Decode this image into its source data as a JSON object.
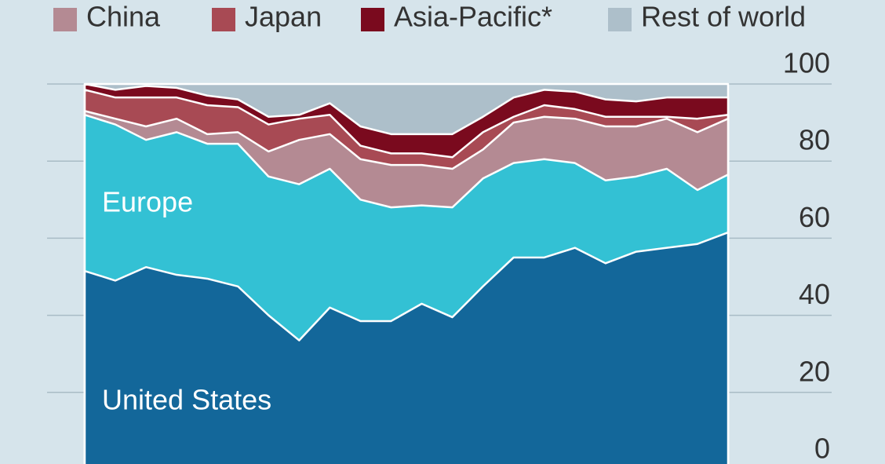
{
  "chart_data": {
    "type": "stacked-area",
    "categories": [
      null,
      null,
      null,
      null,
      null,
      null,
      null,
      null,
      null,
      null,
      null,
      null,
      null,
      null,
      null,
      null,
      null,
      null,
      null,
      null,
      null,
      null
    ],
    "series": [
      {
        "name": "United States",
        "color": "#13679a",
        "values": [
          51.5,
          49,
          52.5,
          50.5,
          49.5,
          47.5,
          40,
          33.5,
          42,
          38.5,
          38.5,
          43,
          39.5,
          47.5,
          55,
          55,
          57.5,
          53.5,
          56.5,
          57.5,
          58.5,
          61.5
        ]
      },
      {
        "name": "Europe",
        "color": "#33c1d4",
        "values": [
          40.5,
          40.5,
          33,
          37,
          35,
          37,
          36,
          40.5,
          36,
          31.5,
          29.5,
          25.5,
          28.5,
          28,
          24.5,
          25.5,
          22,
          21.5,
          19.5,
          20.5,
          14,
          15
        ]
      },
      {
        "name": "China",
        "color": "#b48a93",
        "values": [
          1,
          1.5,
          3.5,
          3.5,
          2.5,
          3,
          6.5,
          11.5,
          9,
          10.5,
          11,
          10.5,
          10,
          7.5,
          10.5,
          11,
          11.5,
          14,
          13,
          13,
          15,
          14.5
        ]
      },
      {
        "name": "Japan",
        "color": "#a84a54",
        "values": [
          5.5,
          5.5,
          7.5,
          5.5,
          7.5,
          6.5,
          7,
          5.5,
          5,
          3.5,
          3,
          3,
          3,
          4.5,
          1.5,
          3,
          2.5,
          2.5,
          2.5,
          0.5,
          3.5,
          1
        ]
      },
      {
        "name": "Asia-Pacific*",
        "color": "#7a0a1e",
        "values": [
          1.5,
          2,
          3,
          2.5,
          2.5,
          2,
          2,
          1,
          3,
          5,
          5,
          5,
          6,
          4,
          5,
          4,
          4.5,
          4.5,
          4,
          5,
          5.5,
          4.5
        ]
      },
      {
        "name": "Rest of world",
        "color": "#adbfca",
        "values": [
          0,
          1.5,
          0.5,
          1,
          3,
          4,
          8.5,
          8,
          5,
          11,
          13,
          13,
          13,
          8.5,
          3.5,
          1.5,
          2,
          4,
          4.5,
          3.5,
          3.5,
          3.5
        ]
      }
    ],
    "ylim": [
      0,
      100
    ],
    "yticks": [
      0,
      20,
      40,
      60,
      80,
      100
    ],
    "grid": true
  }
}
